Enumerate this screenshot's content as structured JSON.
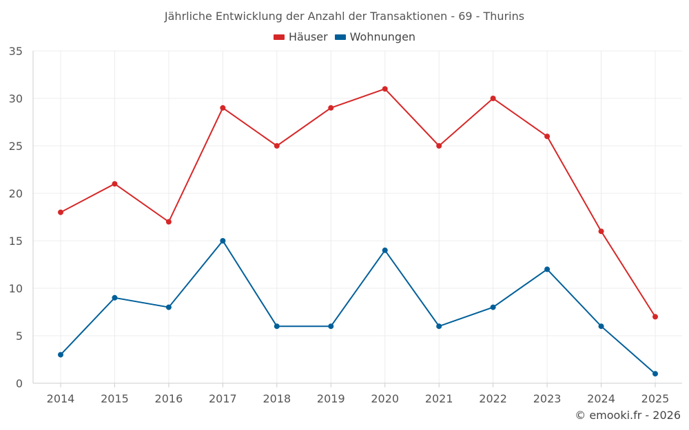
{
  "chart_data": {
    "type": "line",
    "title": "Jährliche Entwicklung der Anzahl der Transaktionen - 69 - Thurins",
    "x": [
      "2014",
      "2015",
      "2016",
      "2017",
      "2018",
      "2019",
      "2020",
      "2021",
      "2022",
      "2023",
      "2024",
      "2025"
    ],
    "series": [
      {
        "name": "Häuser",
        "color": "#d62728",
        "values": [
          18,
          21,
          17,
          29,
          25,
          29,
          31,
          25,
          30,
          26,
          16,
          7
        ]
      },
      {
        "name": "Wohnungen",
        "color": "#005f99",
        "values": [
          3,
          9,
          8,
          15,
          6,
          6,
          14,
          6,
          8,
          12,
          6,
          1
        ]
      }
    ],
    "ylim": [
      0,
      35
    ],
    "yticks": [
      0,
      5,
      10,
      15,
      20,
      25,
      30,
      35
    ],
    "grid": true,
    "legend_position": "top-center",
    "xlabel": "",
    "ylabel": ""
  },
  "credit": "© emooki.fr - 2026"
}
